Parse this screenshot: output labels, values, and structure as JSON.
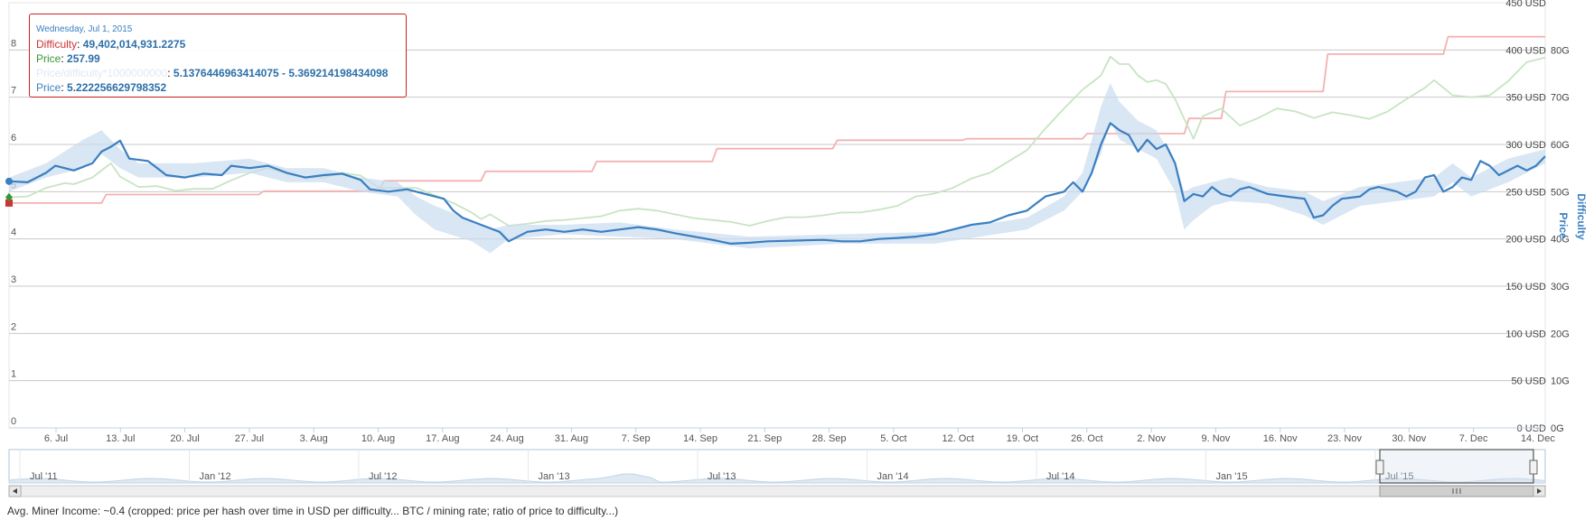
{
  "chart_data": {
    "type": "line",
    "x_tick_labels": [
      "6. Jul",
      "13. Jul",
      "20. Jul",
      "27. Jul",
      "3. Aug",
      "10. Aug",
      "17. Aug",
      "24. Aug",
      "31. Aug",
      "7. Sep",
      "14. Sep",
      "21. Sep",
      "28. Sep",
      "5. Oct",
      "12. Oct",
      "19. Oct",
      "26. Oct",
      "2. Nov",
      "9. Nov",
      "16. Nov",
      "23. Nov",
      "30. Nov",
      "7. Dec",
      "14. Dec"
    ],
    "left_axis": {
      "ticks": [
        "0",
        "1",
        "2",
        "3",
        "4",
        "5",
        "6",
        "7",
        "8"
      ],
      "range": [
        0,
        9
      ]
    },
    "price_axis": {
      "title": "Price",
      "ticks": [
        "0 USD",
        "50 USD",
        "100 USD",
        "150 USD",
        "200 USD",
        "250 USD",
        "300 USD",
        "350 USD",
        "400 USD",
        "450 USD"
      ],
      "range": [
        0,
        450
      ]
    },
    "difficulty_axis": {
      "title": "Difficulty",
      "ticks": [
        "0G",
        "10G",
        "20G",
        "30G",
        "40G",
        "50G",
        "60G",
        "70G",
        "80G"
      ],
      "range": [
        0,
        90
      ]
    },
    "x_day_range": [
      0,
      166
    ],
    "series": [
      {
        "name": "Difficulty",
        "color": "#f2b2b2",
        "axis": "difficulty",
        "points": [
          [
            0,
            47.6
          ],
          [
            10,
            47.6
          ],
          [
            10.5,
            49.4
          ],
          [
            27,
            49.4
          ],
          [
            27.5,
            50.1
          ],
          [
            40,
            50.1
          ],
          [
            40.5,
            52.3
          ],
          [
            51,
            52.3
          ],
          [
            51.5,
            54.3
          ],
          [
            63,
            54.3
          ],
          [
            63.5,
            56.4
          ],
          [
            76,
            56.4
          ],
          [
            76.5,
            59.1
          ],
          [
            89,
            59.1
          ],
          [
            89.5,
            60.9
          ],
          [
            103,
            60.9
          ],
          [
            103.5,
            61.2
          ],
          [
            116,
            61.2
          ],
          [
            116.5,
            62.3
          ],
          [
            127,
            62.3
          ],
          [
            127.5,
            65.5
          ],
          [
            131,
            65.5
          ],
          [
            131.5,
            71.2
          ],
          [
            142,
            71.2
          ],
          [
            142.5,
            79.1
          ],
          [
            155,
            79.1
          ],
          [
            155.5,
            82.8
          ],
          [
            166,
            82.8
          ]
        ]
      },
      {
        "name": "Price",
        "color": "#c8e4c3",
        "axis": "price",
        "points": [
          [
            0,
            244
          ],
          [
            2,
            245
          ],
          [
            4,
            254
          ],
          [
            6,
            259
          ],
          [
            7,
            258
          ],
          [
            9,
            265
          ],
          [
            11,
            280
          ],
          [
            12,
            266
          ],
          [
            14,
            255
          ],
          [
            16,
            256
          ],
          [
            18,
            251
          ],
          [
            20,
            253
          ],
          [
            22,
            253
          ],
          [
            24,
            262
          ],
          [
            26,
            270
          ],
          [
            28,
            275
          ],
          [
            30,
            269
          ],
          [
            32,
            265
          ],
          [
            34,
            265
          ],
          [
            36,
            270
          ],
          [
            38,
            267
          ],
          [
            40,
            254
          ],
          [
            42,
            254
          ],
          [
            44,
            254
          ],
          [
            46,
            246
          ],
          [
            48,
            238
          ],
          [
            50,
            228
          ],
          [
            51,
            221
          ],
          [
            52,
            226
          ],
          [
            54,
            214
          ],
          [
            56,
            216
          ],
          [
            58,
            219
          ],
          [
            60,
            220
          ],
          [
            62,
            222
          ],
          [
            64,
            224
          ],
          [
            66,
            230
          ],
          [
            68,
            232
          ],
          [
            70,
            230
          ],
          [
            72,
            226
          ],
          [
            74,
            222
          ],
          [
            76,
            220
          ],
          [
            78,
            218
          ],
          [
            80,
            214
          ],
          [
            82,
            219
          ],
          [
            84,
            223
          ],
          [
            86,
            223
          ],
          [
            88,
            225
          ],
          [
            90,
            228
          ],
          [
            92,
            228
          ],
          [
            94,
            231
          ],
          [
            96,
            235
          ],
          [
            98,
            245
          ],
          [
            100,
            248
          ],
          [
            102,
            254
          ],
          [
            104,
            264
          ],
          [
            106,
            270
          ],
          [
            108,
            282
          ],
          [
            110,
            294
          ],
          [
            112,
            317
          ],
          [
            114,
            338
          ],
          [
            116,
            358
          ],
          [
            118,
            373
          ],
          [
            119,
            393
          ],
          [
            120,
            385
          ],
          [
            121,
            385
          ],
          [
            122,
            373
          ],
          [
            123,
            366
          ],
          [
            124,
            368
          ],
          [
            125,
            364
          ],
          [
            126,
            348
          ],
          [
            128,
            306
          ],
          [
            129,
            330
          ],
          [
            131,
            338
          ],
          [
            133,
            320
          ],
          [
            135,
            328
          ],
          [
            137,
            338
          ],
          [
            139,
            335
          ],
          [
            141,
            328
          ],
          [
            143,
            334
          ],
          [
            145,
            331
          ],
          [
            147,
            327
          ],
          [
            149,
            335
          ],
          [
            151,
            348
          ],
          [
            153,
            360
          ],
          [
            154,
            368
          ],
          [
            156,
            352
          ],
          [
            158,
            350
          ],
          [
            160,
            352
          ],
          [
            162,
            367
          ],
          [
            164,
            387
          ],
          [
            166,
            392
          ]
        ]
      },
      {
        "name": "Price/difficulty*1000000000",
        "color": "#c9dcef",
        "axis": "left",
        "band": [
          [
            0,
            5.0,
            5.3
          ],
          [
            4,
            5.3,
            5.6
          ],
          [
            8,
            5.5,
            6.1
          ],
          [
            10,
            5.8,
            6.3
          ],
          [
            12,
            5.5,
            5.9
          ],
          [
            14,
            5.3,
            5.6
          ],
          [
            20,
            5.3,
            5.6
          ],
          [
            26,
            5.4,
            5.7
          ],
          [
            30,
            5.2,
            5.5
          ],
          [
            34,
            5.2,
            5.5
          ],
          [
            38,
            5.0,
            5.3
          ],
          [
            42,
            4.9,
            5.2
          ],
          [
            44,
            4.5,
            4.9
          ],
          [
            46,
            4.2,
            4.7
          ],
          [
            50,
            3.95,
            4.4
          ],
          [
            52,
            3.7,
            4.2
          ],
          [
            54,
            4.0,
            4.3
          ],
          [
            60,
            4.1,
            4.3
          ],
          [
            66,
            4.05,
            4.35
          ],
          [
            72,
            4.0,
            4.2
          ],
          [
            80,
            3.8,
            4.05
          ],
          [
            90,
            3.9,
            4.1
          ],
          [
            100,
            3.9,
            4.15
          ],
          [
            110,
            4.2,
            4.45
          ],
          [
            114,
            4.6,
            4.9
          ],
          [
            116,
            5.0,
            5.4
          ],
          [
            118,
            5.8,
            6.8
          ],
          [
            119,
            6.5,
            7.3
          ],
          [
            120,
            6.1,
            6.9
          ],
          [
            122,
            5.9,
            6.5
          ],
          [
            124,
            5.7,
            6.3
          ],
          [
            126,
            5.0,
            5.6
          ],
          [
            127,
            4.2,
            5.0
          ],
          [
            128,
            4.4,
            5.1
          ],
          [
            130,
            4.7,
            5.2
          ],
          [
            132,
            4.8,
            5.3
          ],
          [
            136,
            4.75,
            5.1
          ],
          [
            140,
            4.5,
            5.0
          ],
          [
            142,
            4.3,
            4.8
          ],
          [
            146,
            4.7,
            5.1
          ],
          [
            150,
            4.8,
            5.2
          ],
          [
            154,
            4.9,
            5.3
          ],
          [
            156,
            5.2,
            5.6
          ],
          [
            158,
            4.9,
            5.3
          ],
          [
            162,
            5.2,
            5.7
          ],
          [
            166,
            5.6,
            5.9
          ]
        ]
      },
      {
        "name": "Price",
        "color": "#3a7fc1",
        "axis": "left",
        "points": [
          [
            0,
            5.22
          ],
          [
            2,
            5.2
          ],
          [
            4,
            5.4
          ],
          [
            5,
            5.55
          ],
          [
            7,
            5.45
          ],
          [
            9,
            5.6
          ],
          [
            10,
            5.85
          ],
          [
            11,
            5.95
          ],
          [
            12,
            6.08
          ],
          [
            13,
            5.7
          ],
          [
            15,
            5.65
          ],
          [
            17,
            5.35
          ],
          [
            19,
            5.3
          ],
          [
            21,
            5.38
          ],
          [
            23,
            5.35
          ],
          [
            24,
            5.55
          ],
          [
            26,
            5.5
          ],
          [
            28,
            5.55
          ],
          [
            30,
            5.4
          ],
          [
            32,
            5.3
          ],
          [
            34,
            5.35
          ],
          [
            36,
            5.38
          ],
          [
            38,
            5.25
          ],
          [
            39,
            5.05
          ],
          [
            41,
            5.0
          ],
          [
            43,
            5.05
          ],
          [
            45,
            4.95
          ],
          [
            47,
            4.85
          ],
          [
            48,
            4.6
          ],
          [
            49,
            4.45
          ],
          [
            51,
            4.3
          ],
          [
            53,
            4.15
          ],
          [
            54,
            3.95
          ],
          [
            56,
            4.15
          ],
          [
            58,
            4.2
          ],
          [
            60,
            4.15
          ],
          [
            62,
            4.2
          ],
          [
            64,
            4.15
          ],
          [
            66,
            4.2
          ],
          [
            68,
            4.25
          ],
          [
            70,
            4.2
          ],
          [
            72,
            4.12
          ],
          [
            74,
            4.05
          ],
          [
            76,
            3.98
          ],
          [
            78,
            3.9
          ],
          [
            80,
            3.92
          ],
          [
            82,
            3.95
          ],
          [
            84,
            3.96
          ],
          [
            86,
            3.97
          ],
          [
            88,
            3.98
          ],
          [
            90,
            3.95
          ],
          [
            92,
            3.95
          ],
          [
            94,
            4.0
          ],
          [
            96,
            4.02
          ],
          [
            98,
            4.05
          ],
          [
            100,
            4.1
          ],
          [
            102,
            4.2
          ],
          [
            104,
            4.3
          ],
          [
            106,
            4.35
          ],
          [
            108,
            4.5
          ],
          [
            110,
            4.6
          ],
          [
            111,
            4.75
          ],
          [
            112,
            4.9
          ],
          [
            114,
            5.0
          ],
          [
            115,
            5.2
          ],
          [
            116,
            5.0
          ],
          [
            117,
            5.4
          ],
          [
            118,
            6.0
          ],
          [
            119,
            6.45
          ],
          [
            120,
            6.3
          ],
          [
            121,
            6.2
          ],
          [
            122,
            5.85
          ],
          [
            123,
            6.1
          ],
          [
            124,
            5.9
          ],
          [
            125,
            6.0
          ],
          [
            126,
            5.6
          ],
          [
            127,
            4.8
          ],
          [
            128,
            4.95
          ],
          [
            129,
            4.9
          ],
          [
            130,
            5.1
          ],
          [
            131,
            4.95
          ],
          [
            132,
            4.9
          ],
          [
            133,
            5.05
          ],
          [
            134,
            5.1
          ],
          [
            136,
            4.95
          ],
          [
            138,
            4.9
          ],
          [
            140,
            4.85
          ],
          [
            141,
            4.45
          ],
          [
            142,
            4.5
          ],
          [
            143,
            4.7
          ],
          [
            144,
            4.85
          ],
          [
            146,
            4.9
          ],
          [
            147,
            5.05
          ],
          [
            148,
            5.1
          ],
          [
            150,
            5.0
          ],
          [
            151,
            4.9
          ],
          [
            152,
            5.0
          ],
          [
            153,
            5.3
          ],
          [
            154,
            5.35
          ],
          [
            155,
            5.0
          ],
          [
            156,
            5.1
          ],
          [
            157,
            5.3
          ],
          [
            158,
            5.25
          ],
          [
            159,
            5.65
          ],
          [
            160,
            5.55
          ],
          [
            161,
            5.35
          ],
          [
            162,
            5.45
          ],
          [
            163,
            5.55
          ],
          [
            164,
            5.45
          ],
          [
            165,
            5.55
          ],
          [
            166,
            5.75
          ]
        ]
      }
    ],
    "navigator_labels": [
      "Jul '11",
      "Jan '12",
      "Jul '12",
      "Jan '13",
      "Jul '13",
      "Jan '14",
      "Jul '14",
      "Jan '15",
      "Jul '15"
    ],
    "tooltip": {
      "date": "Wednesday, Jul 1, 2015",
      "difficulty_label": "Difficulty",
      "difficulty_value": "49,402,014,931.2275",
      "price_label": "Price",
      "price_value": "257.99",
      "ratio_label": "Price/difficulty*1000000000",
      "ratio_value": "5.1376446963414075 - 5.369214198434098",
      "fit_label": "Price",
      "fit_value": "5.222256629798352"
    }
  },
  "footer_text": "Avg. Miner Income: ~0.4 (cropped: price per hash over time in USD per difficulty... BTC / mining rate; ratio of price to difficulty...)"
}
